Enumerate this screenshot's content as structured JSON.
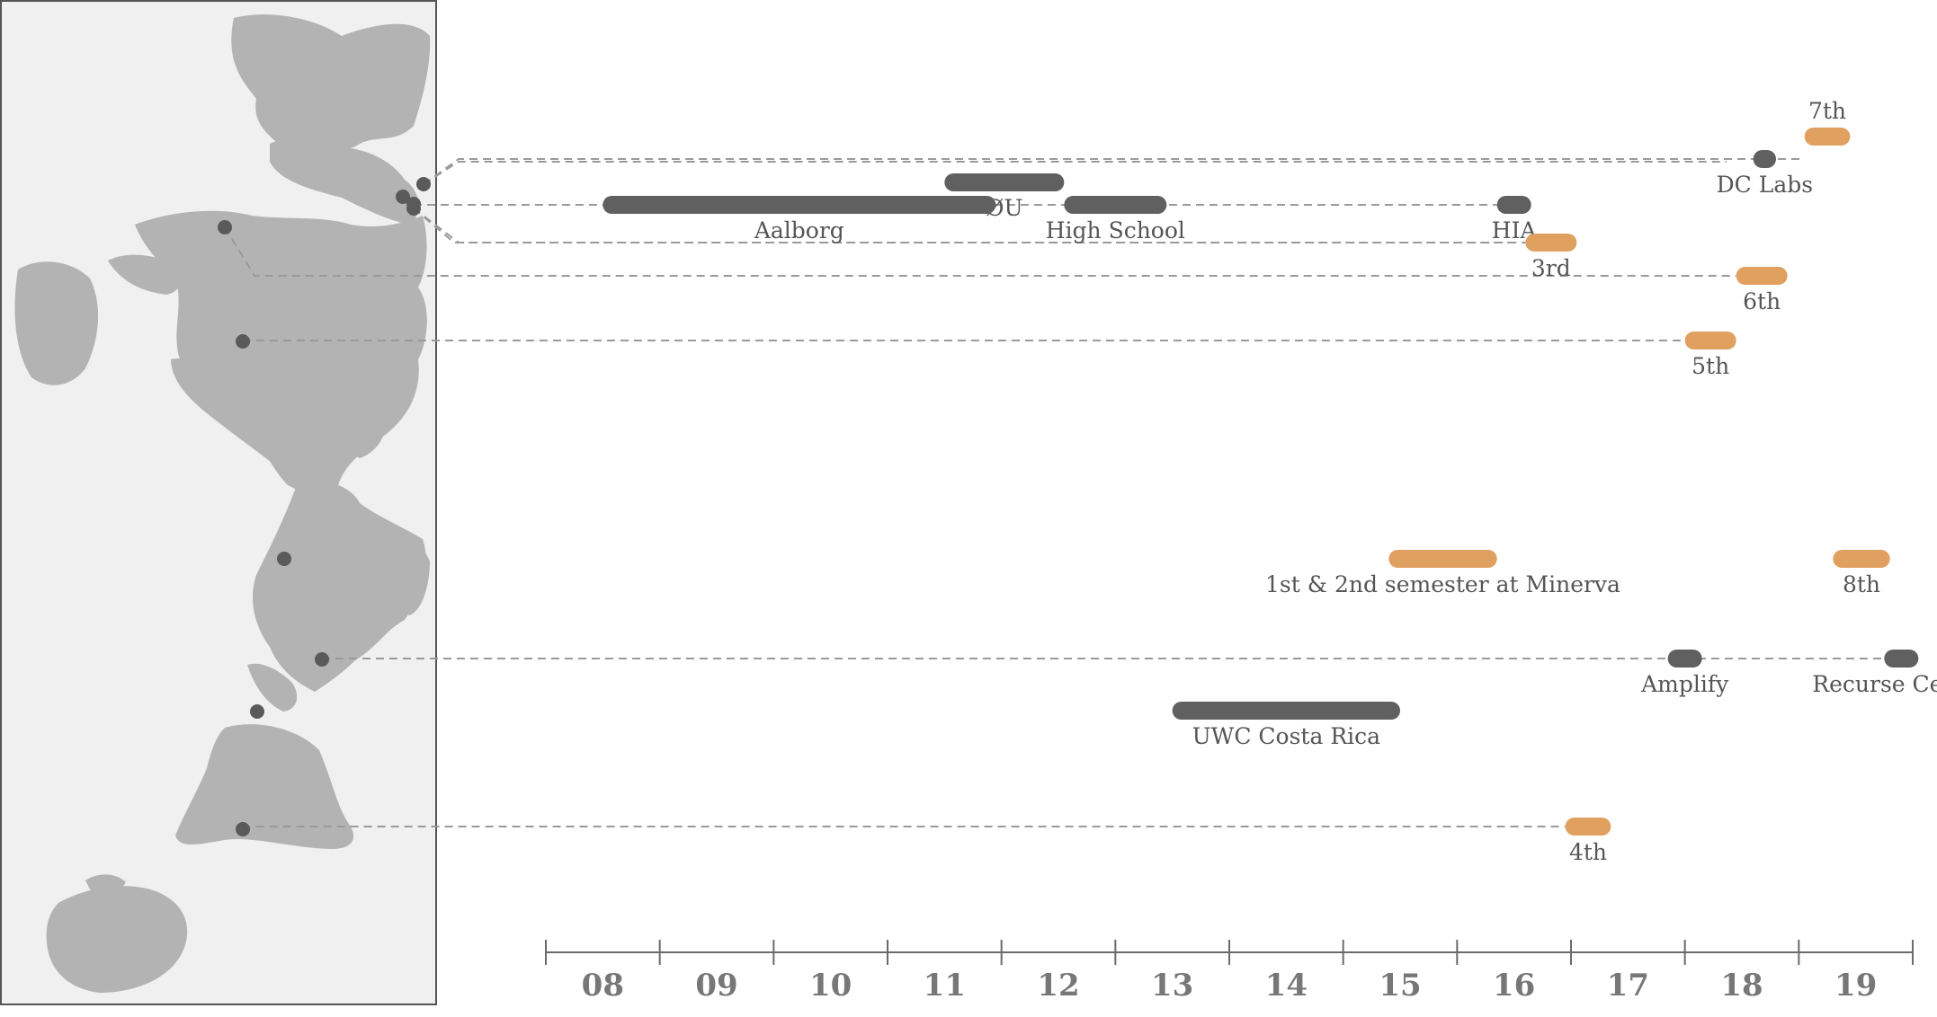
{
  "colors": {
    "map_background": "#f0f0f0",
    "land": "#b3b3b3",
    "place_dot": "#5a5a5a",
    "dashed_line": "#9a9a9a",
    "work_bar": "#606060",
    "semester_bar": "#e0a060",
    "axis": "#6a6a6a",
    "label": "#555555",
    "year_label": "#777777"
  },
  "chart_data": {
    "type": "timeline",
    "x_axis": {
      "ticks": [
        "08",
        "09",
        "10",
        "11",
        "12",
        "13",
        "14",
        "15",
        "16",
        "17",
        "18",
        "19"
      ],
      "range": [
        2007.5,
        2019.5
      ]
    },
    "bars": [
      {
        "label": "7th",
        "category": "semester",
        "start": 2018.55,
        "end": 2018.95,
        "row": 0
      },
      {
        "label": "DC Labs",
        "category": "work",
        "start": 2018.1,
        "end": 2018.3,
        "row": 1
      },
      {
        "label": "ØU",
        "category": "work",
        "start": 2011.0,
        "end": 2012.05,
        "row": 2
      },
      {
        "label": "Aalborg",
        "category": "work",
        "start": 2008.0,
        "end": 2011.45,
        "row": 3
      },
      {
        "label": "High School",
        "category": "work",
        "start": 2012.05,
        "end": 2012.95,
        "row": 3
      },
      {
        "label": "HIA",
        "category": "work",
        "start": 2015.85,
        "end": 2016.15,
        "row": 3
      },
      {
        "label": "3rd",
        "category": "semester",
        "start": 2016.1,
        "end": 2016.55,
        "row": 4
      },
      {
        "label": "6th",
        "category": "semester",
        "start": 2017.95,
        "end": 2018.4,
        "row": 5
      },
      {
        "label": "5th",
        "category": "semester",
        "start": 2017.5,
        "end": 2017.95,
        "row": 6
      },
      {
        "label": "1st & 2nd semester at Minerva",
        "category": "semester",
        "start": 2014.9,
        "end": 2015.85,
        "row": 7
      },
      {
        "label": "8th",
        "category": "semester",
        "start": 2018.8,
        "end": 2019.3,
        "row": 7
      },
      {
        "label": "Amplify",
        "category": "work",
        "start": 2017.35,
        "end": 2017.65,
        "row": 8
      },
      {
        "label": "Recurse Center",
        "category": "work",
        "start": 2019.25,
        "end": 2019.55,
        "row": 8
      },
      {
        "label": "UWC Costa Rica",
        "category": "work",
        "start": 2013.0,
        "end": 2015.0,
        "row": 9
      },
      {
        "label": "4th",
        "category": "semester",
        "start": 2016.45,
        "end": 2016.85,
        "row": 10
      }
    ],
    "places": [
      {
        "id": "copenhagen",
        "connects": [
          "DC Labs",
          "7th"
        ]
      },
      {
        "id": "aalborg-region",
        "connects": [
          "Aalborg",
          "ØU",
          "High School",
          "HIA"
        ]
      },
      {
        "id": "berlin",
        "connects": [
          "3rd"
        ]
      },
      {
        "id": "seoul",
        "connects": [
          "6th"
        ]
      },
      {
        "id": "hyderabad",
        "connects": [
          "5th"
        ]
      },
      {
        "id": "san-francisco",
        "connects": [
          "1st & 2nd semester at Minerva",
          "8th"
        ]
      },
      {
        "id": "new-york",
        "connects": [
          "Amplify",
          "Recurse Center"
        ]
      },
      {
        "id": "costa-rica",
        "connects": [
          "UWC Costa Rica"
        ]
      },
      {
        "id": "buenos-aires",
        "connects": [
          "4th"
        ]
      }
    ]
  }
}
